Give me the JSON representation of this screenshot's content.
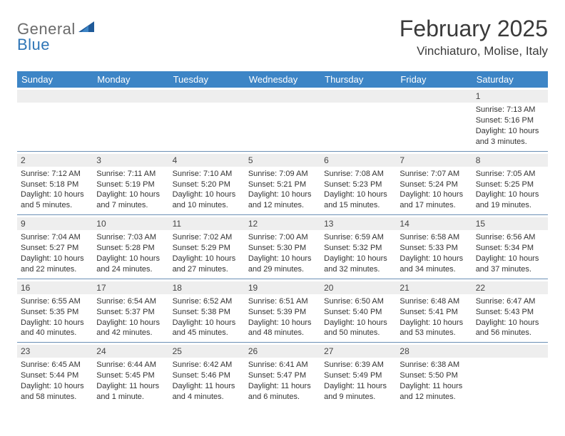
{
  "logo": {
    "text_gray": "General",
    "text_blue": "Blue"
  },
  "header": {
    "title": "February 2025",
    "location": "Vinchiaturo, Molise, Italy"
  },
  "colors": {
    "header_bar": "#3d85c6",
    "row_divider": "#6b8fb5",
    "daynum_bg": "#eeeeee",
    "logo_gray": "#6b6b6b",
    "logo_blue": "#2e75b6",
    "logo_triangle": "#1f5a99"
  },
  "day_names": [
    "Sunday",
    "Monday",
    "Tuesday",
    "Wednesday",
    "Thursday",
    "Friday",
    "Saturday"
  ],
  "weeks": [
    [
      {
        "n": "",
        "sunrise": "",
        "sunset": "",
        "daylight": ""
      },
      {
        "n": "",
        "sunrise": "",
        "sunset": "",
        "daylight": ""
      },
      {
        "n": "",
        "sunrise": "",
        "sunset": "",
        "daylight": ""
      },
      {
        "n": "",
        "sunrise": "",
        "sunset": "",
        "daylight": ""
      },
      {
        "n": "",
        "sunrise": "",
        "sunset": "",
        "daylight": ""
      },
      {
        "n": "",
        "sunrise": "",
        "sunset": "",
        "daylight": ""
      },
      {
        "n": "1",
        "sunrise": "Sunrise: 7:13 AM",
        "sunset": "Sunset: 5:16 PM",
        "daylight": "Daylight: 10 hours and 3 minutes."
      }
    ],
    [
      {
        "n": "2",
        "sunrise": "Sunrise: 7:12 AM",
        "sunset": "Sunset: 5:18 PM",
        "daylight": "Daylight: 10 hours and 5 minutes."
      },
      {
        "n": "3",
        "sunrise": "Sunrise: 7:11 AM",
        "sunset": "Sunset: 5:19 PM",
        "daylight": "Daylight: 10 hours and 7 minutes."
      },
      {
        "n": "4",
        "sunrise": "Sunrise: 7:10 AM",
        "sunset": "Sunset: 5:20 PM",
        "daylight": "Daylight: 10 hours and 10 minutes."
      },
      {
        "n": "5",
        "sunrise": "Sunrise: 7:09 AM",
        "sunset": "Sunset: 5:21 PM",
        "daylight": "Daylight: 10 hours and 12 minutes."
      },
      {
        "n": "6",
        "sunrise": "Sunrise: 7:08 AM",
        "sunset": "Sunset: 5:23 PM",
        "daylight": "Daylight: 10 hours and 15 minutes."
      },
      {
        "n": "7",
        "sunrise": "Sunrise: 7:07 AM",
        "sunset": "Sunset: 5:24 PM",
        "daylight": "Daylight: 10 hours and 17 minutes."
      },
      {
        "n": "8",
        "sunrise": "Sunrise: 7:05 AM",
        "sunset": "Sunset: 5:25 PM",
        "daylight": "Daylight: 10 hours and 19 minutes."
      }
    ],
    [
      {
        "n": "9",
        "sunrise": "Sunrise: 7:04 AM",
        "sunset": "Sunset: 5:27 PM",
        "daylight": "Daylight: 10 hours and 22 minutes."
      },
      {
        "n": "10",
        "sunrise": "Sunrise: 7:03 AM",
        "sunset": "Sunset: 5:28 PM",
        "daylight": "Daylight: 10 hours and 24 minutes."
      },
      {
        "n": "11",
        "sunrise": "Sunrise: 7:02 AM",
        "sunset": "Sunset: 5:29 PM",
        "daylight": "Daylight: 10 hours and 27 minutes."
      },
      {
        "n": "12",
        "sunrise": "Sunrise: 7:00 AM",
        "sunset": "Sunset: 5:30 PM",
        "daylight": "Daylight: 10 hours and 29 minutes."
      },
      {
        "n": "13",
        "sunrise": "Sunrise: 6:59 AM",
        "sunset": "Sunset: 5:32 PM",
        "daylight": "Daylight: 10 hours and 32 minutes."
      },
      {
        "n": "14",
        "sunrise": "Sunrise: 6:58 AM",
        "sunset": "Sunset: 5:33 PM",
        "daylight": "Daylight: 10 hours and 34 minutes."
      },
      {
        "n": "15",
        "sunrise": "Sunrise: 6:56 AM",
        "sunset": "Sunset: 5:34 PM",
        "daylight": "Daylight: 10 hours and 37 minutes."
      }
    ],
    [
      {
        "n": "16",
        "sunrise": "Sunrise: 6:55 AM",
        "sunset": "Sunset: 5:35 PM",
        "daylight": "Daylight: 10 hours and 40 minutes."
      },
      {
        "n": "17",
        "sunrise": "Sunrise: 6:54 AM",
        "sunset": "Sunset: 5:37 PM",
        "daylight": "Daylight: 10 hours and 42 minutes."
      },
      {
        "n": "18",
        "sunrise": "Sunrise: 6:52 AM",
        "sunset": "Sunset: 5:38 PM",
        "daylight": "Daylight: 10 hours and 45 minutes."
      },
      {
        "n": "19",
        "sunrise": "Sunrise: 6:51 AM",
        "sunset": "Sunset: 5:39 PM",
        "daylight": "Daylight: 10 hours and 48 minutes."
      },
      {
        "n": "20",
        "sunrise": "Sunrise: 6:50 AM",
        "sunset": "Sunset: 5:40 PM",
        "daylight": "Daylight: 10 hours and 50 minutes."
      },
      {
        "n": "21",
        "sunrise": "Sunrise: 6:48 AM",
        "sunset": "Sunset: 5:41 PM",
        "daylight": "Daylight: 10 hours and 53 minutes."
      },
      {
        "n": "22",
        "sunrise": "Sunrise: 6:47 AM",
        "sunset": "Sunset: 5:43 PM",
        "daylight": "Daylight: 10 hours and 56 minutes."
      }
    ],
    [
      {
        "n": "23",
        "sunrise": "Sunrise: 6:45 AM",
        "sunset": "Sunset: 5:44 PM",
        "daylight": "Daylight: 10 hours and 58 minutes."
      },
      {
        "n": "24",
        "sunrise": "Sunrise: 6:44 AM",
        "sunset": "Sunset: 5:45 PM",
        "daylight": "Daylight: 11 hours and 1 minute."
      },
      {
        "n": "25",
        "sunrise": "Sunrise: 6:42 AM",
        "sunset": "Sunset: 5:46 PM",
        "daylight": "Daylight: 11 hours and 4 minutes."
      },
      {
        "n": "26",
        "sunrise": "Sunrise: 6:41 AM",
        "sunset": "Sunset: 5:47 PM",
        "daylight": "Daylight: 11 hours and 6 minutes."
      },
      {
        "n": "27",
        "sunrise": "Sunrise: 6:39 AM",
        "sunset": "Sunset: 5:49 PM",
        "daylight": "Daylight: 11 hours and 9 minutes."
      },
      {
        "n": "28",
        "sunrise": "Sunrise: 6:38 AM",
        "sunset": "Sunset: 5:50 PM",
        "daylight": "Daylight: 11 hours and 12 minutes."
      },
      {
        "n": "",
        "sunrise": "",
        "sunset": "",
        "daylight": ""
      }
    ]
  ]
}
